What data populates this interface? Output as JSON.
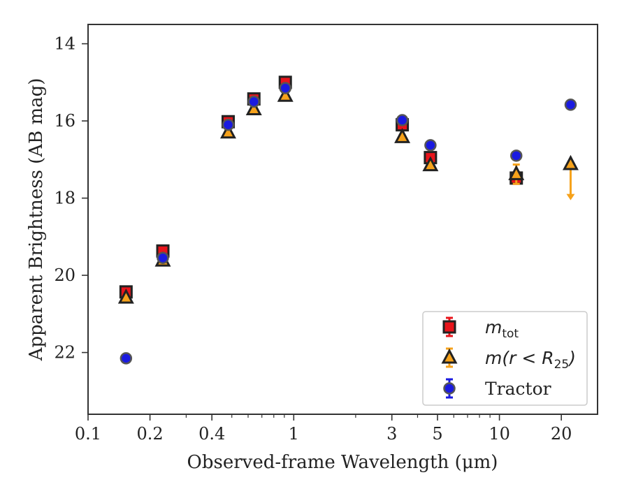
{
  "chart_data": {
    "type": "scatter",
    "xscale": "log",
    "yscale": "linear",
    "yinverted": true,
    "xlim": [
      0.1,
      30
    ],
    "ylim": [
      23.6,
      13.5
    ],
    "xlabel": "Observed-frame Wavelength (μm)",
    "ylabel": "Apparent Brightness (AB mag)",
    "xticks": [
      {
        "value": 0.1,
        "label": "0.1"
      },
      {
        "value": 0.2,
        "label": "0.2"
      },
      {
        "value": 0.4,
        "label": "0.4"
      },
      {
        "value": 1,
        "label": "1"
      },
      {
        "value": 3,
        "label": "3"
      },
      {
        "value": 5,
        "label": "5"
      },
      {
        "value": 10,
        "label": "10"
      },
      {
        "value": 20,
        "label": "20"
      }
    ],
    "yticks": [
      {
        "value": 14,
        "label": "14"
      },
      {
        "value": 16,
        "label": "16"
      },
      {
        "value": 18,
        "label": "18"
      },
      {
        "value": 20,
        "label": "20"
      },
      {
        "value": 22,
        "label": "22"
      }
    ],
    "legend_position": "lower-right",
    "series": [
      {
        "name": "m_tot",
        "label_main": "m",
        "label_sub": "tot",
        "marker": "square",
        "fill": "#e8141b",
        "edge": "#222222",
        "errcolor": "#e8141b",
        "points": [
          {
            "x": 0.153,
            "y": 20.43,
            "err": 0.05
          },
          {
            "x": 0.231,
            "y": 19.37,
            "err": 0.05
          },
          {
            "x": 0.48,
            "y": 16.02,
            "err": 0.03
          },
          {
            "x": 0.64,
            "y": 15.43,
            "err": 0.03
          },
          {
            "x": 0.91,
            "y": 15.0,
            "err": 0.03
          },
          {
            "x": 3.37,
            "y": 16.1,
            "err": 0.05
          },
          {
            "x": 4.62,
            "y": 16.95,
            "err": 0.06
          },
          {
            "x": 12.08,
            "y": 17.48,
            "err": 0.15
          }
        ]
      },
      {
        "name": "m(r < R25)",
        "label_main": "m(r < R",
        "label_sub": "25",
        "label_tail": ")",
        "marker": "triangle",
        "fill": "#f6a21b",
        "edge": "#222222",
        "errcolor": "#f6a21b",
        "points": [
          {
            "x": 0.153,
            "y": 20.58,
            "err": 0.05
          },
          {
            "x": 0.231,
            "y": 19.62,
            "err": 0.05
          },
          {
            "x": 0.48,
            "y": 16.3,
            "err": 0.03
          },
          {
            "x": 0.64,
            "y": 15.7,
            "err": 0.03
          },
          {
            "x": 0.91,
            "y": 15.35,
            "err": 0.03
          },
          {
            "x": 3.37,
            "y": 16.42,
            "err": 0.05
          },
          {
            "x": 4.62,
            "y": 17.15,
            "err": 0.06
          },
          {
            "x": 12.08,
            "y": 17.38,
            "err": 0.25
          },
          {
            "x": 22.19,
            "y": 17.12,
            "upper_limit": true,
            "arrow_to": 18.0
          }
        ]
      },
      {
        "name": "Tractor",
        "label_main": "Tractor",
        "marker": "circle",
        "fill": "#1a1ae0",
        "edge": "#555555",
        "errcolor": "#1a1ae0",
        "points": [
          {
            "x": 0.153,
            "y": 22.15,
            "err": 0.08
          },
          {
            "x": 0.231,
            "y": 19.55,
            "err": 0.05
          },
          {
            "x": 0.48,
            "y": 16.1,
            "err": 0.03
          },
          {
            "x": 0.64,
            "y": 15.5,
            "err": 0.03
          },
          {
            "x": 0.91,
            "y": 15.15,
            "err": 0.03
          },
          {
            "x": 3.37,
            "y": 15.98,
            "err": 0.04
          },
          {
            "x": 4.62,
            "y": 16.63,
            "err": 0.05
          },
          {
            "x": 12.08,
            "y": 16.9,
            "err": 0.08
          },
          {
            "x": 22.19,
            "y": 15.58,
            "err": 0.06
          }
        ]
      }
    ]
  }
}
